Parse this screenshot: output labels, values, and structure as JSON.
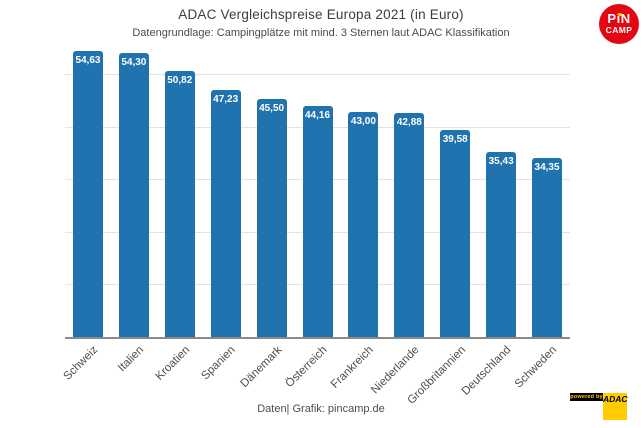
{
  "header": {
    "title": "ADAC Vergleichspreise Europa 2021 (in Euro)",
    "subtitle": "Datengrundlage: Campingplätze mit mind. 3 Sternen laut ADAC Klassifikation"
  },
  "logo": {
    "line1": "PiN",
    "line2": "CAMP",
    "bg_color": "#e30613",
    "dot_color": "#ffcc00"
  },
  "chart_data": {
    "type": "bar",
    "title": "ADAC Vergleichspreise Europa 2021 (in Euro)",
    "subtitle": "Datengrundlage: Campingplätze mit mind. 3 Sternen laut ADAC Klassifikation",
    "categories": [
      "Schweiz",
      "Italien",
      "Kroatien",
      "Spanien",
      "Dänemark",
      "Österreich",
      "Frankreich",
      "Niederlande",
      "Großbritannien",
      "Deutschland",
      "Schweden"
    ],
    "values": [
      54.63,
      54.3,
      50.82,
      47.23,
      45.5,
      44.16,
      43.0,
      42.88,
      39.58,
      35.43,
      34.35
    ],
    "value_labels": [
      "54,63",
      "54,30",
      "50,82",
      "47,23",
      "45,50",
      "44,16",
      "43,00",
      "42,88",
      "39,58",
      "35,43",
      "34,35"
    ],
    "xlabel": "",
    "ylabel": "",
    "ylim": [
      0,
      55.4
    ],
    "gridline_values": [
      10,
      20,
      30,
      40,
      50
    ],
    "grid": true,
    "legend": false,
    "bar_color": "#2173af",
    "label_rotation_deg": -45
  },
  "footer": {
    "credit": "Daten| Grafik: pincamp.de"
  },
  "powered_by": {
    "prefix": "powered by",
    "brand": "ADAC",
    "bar_bg": "#000000",
    "bar_fg": "#ffcc00",
    "brand_bg": "#ffcc00",
    "brand_fg": "#000000"
  }
}
